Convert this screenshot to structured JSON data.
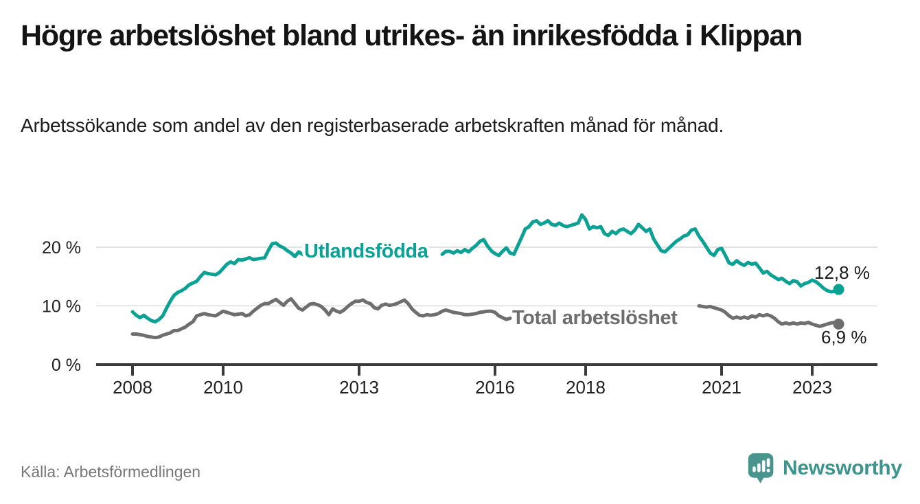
{
  "title": "Högre arbetslöshet bland utrikes- än inrikesfödda i Klippan",
  "subtitle": "Arbetssökande som andel av den registerbaserade arbetskraften månad för månad.",
  "source": "Källa: Arbetsförmedlingen",
  "logo": {
    "text": "Newsworthy"
  },
  "colors": {
    "teal_line": "#0ba295",
    "gray_line": "#6e6e6e",
    "axis": "#3b3b3b",
    "gridline": "#d9d9d9",
    "text_dark": "#141414",
    "logo_teal": "#47958c"
  },
  "chart_data": {
    "type": "line",
    "title": "Högre arbetslöshet bland utrikes- än inrikesfödda i Klippan",
    "subtitle": "Arbetssökande som andel av den registerbaserade arbetskraften månad för månad.",
    "x_axis": {
      "unit": "monthly",
      "start_year": 2008,
      "end_point": "2023-08",
      "tick_years": [
        2008,
        2010,
        2013,
        2016,
        2018,
        2021,
        2023
      ]
    },
    "y_axis": {
      "ticks": [
        {
          "value": 0,
          "label": "0 %"
        },
        {
          "value": 10,
          "label": "10 %"
        },
        {
          "value": 20,
          "label": "20 %"
        }
      ],
      "ylim": [
        0,
        26.5
      ],
      "grid": true
    },
    "series": [
      {
        "name": "Utlandsfödda",
        "color": "#0ba295",
        "end_value": 12.8,
        "end_label": "12,8 %",
        "label_gap_months": [
          47,
          81
        ],
        "values": [
          9,
          8.4,
          8,
          8.4,
          7.9,
          7.5,
          7.3,
          7.7,
          8.3,
          9.6,
          10.8,
          11.8,
          12.3,
          12.6,
          13,
          13.6,
          13.9,
          14.2,
          15,
          15.7,
          15.5,
          15.4,
          15.3,
          15.7,
          16.4,
          17.1,
          17.5,
          17.2,
          17.9,
          17.8,
          18,
          18.2,
          17.9,
          18,
          18.1,
          18.2,
          19.5,
          20.6,
          20.7,
          20.2,
          19.9,
          19.4,
          19,
          18.4,
          19.2,
          18.8,
          18.6,
          18.7,
          18.6,
          18.9,
          19.2,
          19,
          19.3,
          19.1,
          18.8,
          19,
          19.3,
          19.5,
          19.2,
          19,
          19.2,
          19.4,
          19.6,
          19.3,
          19.1,
          18.9,
          19.2,
          19.4,
          19.1,
          18.8,
          19,
          19.3,
          19.5,
          19.2,
          19,
          19.3,
          19.6,
          19.4,
          19.1,
          18.9,
          19.2,
          19,
          18.8,
          19.3,
          19.3,
          19,
          19.4,
          19.1,
          19.6,
          19.2,
          19.8,
          20.3,
          21,
          21.3,
          20.2,
          19.4,
          18.9,
          18.6,
          19.3,
          19.9,
          19,
          18.8,
          20.2,
          21.6,
          23.1,
          23.5,
          24.3,
          24.5,
          23.9,
          24.1,
          24.5,
          23.9,
          23.7,
          24.1,
          23.7,
          23.5,
          23.7,
          23.9,
          24.1,
          25.5,
          24.7,
          23.1,
          23.5,
          23.3,
          23.5,
          22.3,
          22,
          22.7,
          22.3,
          22.9,
          23.1,
          22.7,
          22.3,
          22.9,
          23.9,
          23.3,
          22.7,
          23.1,
          21.4,
          20.4,
          19.4,
          19.2,
          19.8,
          20.4,
          21,
          21.4,
          21.9,
          22.1,
          22.9,
          23.1,
          21.9,
          21,
          20,
          19,
          18.6,
          19.6,
          19.8,
          18.6,
          17.3,
          17.1,
          17.7,
          17.2,
          16.9,
          17.4,
          17.1,
          17.3,
          16.5,
          15.6,
          15.9,
          15.3,
          14.9,
          14.5,
          14.7,
          14.2,
          13.8,
          14.3,
          14.1,
          13.4,
          13.8,
          14,
          14.4,
          14.1,
          13.6,
          13,
          12.6,
          12.4,
          12.5,
          12.8
        ]
      },
      {
        "name": "Total arbetslöshet",
        "color": "#6e6e6e",
        "end_value": 6.9,
        "end_label": "6,9 %",
        "label_gap_months": [
          101,
          149
        ],
        "values": [
          5.2,
          5.2,
          5.1,
          5,
          4.8,
          4.7,
          4.6,
          4.7,
          5,
          5.2,
          5.4,
          5.8,
          5.8,
          6.1,
          6.4,
          6.9,
          7.3,
          8.3,
          8.5,
          8.7,
          8.5,
          8.4,
          8.3,
          8.7,
          9.1,
          8.9,
          8.7,
          8.5,
          8.6,
          8.7,
          8.3,
          8.5,
          9.1,
          9.6,
          10.1,
          10.4,
          10.4,
          10.8,
          11.1,
          10.6,
          10.1,
          10.8,
          11.2,
          10.4,
          9.6,
          9.3,
          9.8,
          10.3,
          10.4,
          10.2,
          9.9,
          9.3,
          8.5,
          9.5,
          9.1,
          8.9,
          9.3,
          9.9,
          10.4,
          10.8,
          10.8,
          11,
          10.6,
          10.4,
          9.7,
          9.5,
          10.1,
          10.3,
          10.1,
          10.2,
          10.4,
          10.7,
          11,
          10.4,
          9.5,
          8.9,
          8.4,
          8.3,
          8.5,
          8.4,
          8.5,
          8.7,
          9.1,
          9.3,
          9.1,
          8.9,
          8.8,
          8.7,
          8.5,
          8.5,
          8.6,
          8.7,
          8.9,
          9,
          9.1,
          9.1,
          8.9,
          8.3,
          8,
          7.7,
          7.9,
          7.7,
          7.5,
          7.8,
          8,
          8.2,
          8.3,
          8.4,
          8.3,
          8.1,
          7.9,
          7.7,
          7.6,
          7.8,
          7.7,
          7.6,
          7.8,
          7.9,
          8,
          8.1,
          8,
          7.8,
          7.6,
          7.4,
          7.3,
          7.5,
          7.4,
          7.3,
          7.5,
          7.6,
          7.7,
          7.8,
          7.7,
          7.8,
          7.9,
          7.8,
          7.7,
          7.9,
          8,
          8.1,
          8.2,
          8.3,
          8.4,
          8.5,
          8.7,
          8.9,
          9.2,
          9.6,
          9.9,
          10.1,
          10,
          9.9,
          9.8,
          9.9,
          9.7,
          9.5,
          9.3,
          8.9,
          8.3,
          7.9,
          8.1,
          7.9,
          8.1,
          7.9,
          8.3,
          8.1,
          8.5,
          8.3,
          8.5,
          8.3,
          7.9,
          7.3,
          6.9,
          7.1,
          6.9,
          7.1,
          6.9,
          7.1,
          7,
          7.2,
          6.9,
          6.7,
          6.5,
          6.7,
          6.9,
          7.1,
          7.2,
          6.9
        ]
      }
    ],
    "legend_position": "on-line-labels"
  }
}
